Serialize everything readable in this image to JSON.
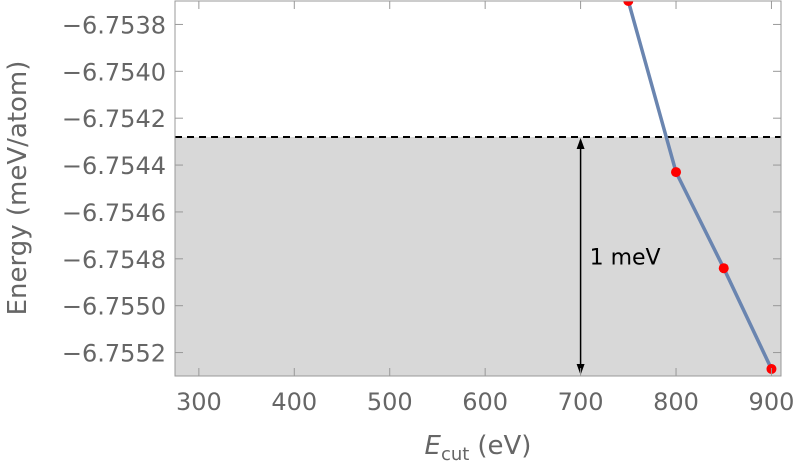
{
  "chart_data": {
    "type": "scatter",
    "xlabel_main": "E",
    "xlabel_sub": "cut",
    "xlabel_unit": "(eV)",
    "ylabel": "Energy (meV/atom)",
    "xlim": [
      275,
      910
    ],
    "ylim": [
      -6.7553,
      -6.7537
    ],
    "x_ticks": [
      300,
      400,
      500,
      600,
      700,
      800,
      900
    ],
    "x_tick_labels": [
      "300",
      "400",
      "500",
      "600",
      "700",
      "800",
      "900"
    ],
    "y_ticks": [
      -6.7552,
      -6.755,
      -6.7548,
      -6.7546,
      -6.7544,
      -6.7542,
      -6.754,
      -6.7538
    ],
    "y_tick_labels": [
      "−6.7552",
      "−6.7550",
      "−6.7548",
      "−6.7546",
      "−6.7544",
      "−6.7542",
      "−6.7540",
      "−6.7538"
    ],
    "series": [
      {
        "x": [
          750,
          800,
          850,
          900
        ],
        "y": [
          -6.7537,
          -6.75443,
          -6.75484,
          -6.75527
        ],
        "line_color": "#6a85b0",
        "marker_color": "#ff0000"
      }
    ],
    "threshold_y": -6.75428,
    "shaded_color": "#d8d8d8",
    "annotation": {
      "text": "1 meV",
      "arrow_x": 700
    },
    "grid": false
  }
}
